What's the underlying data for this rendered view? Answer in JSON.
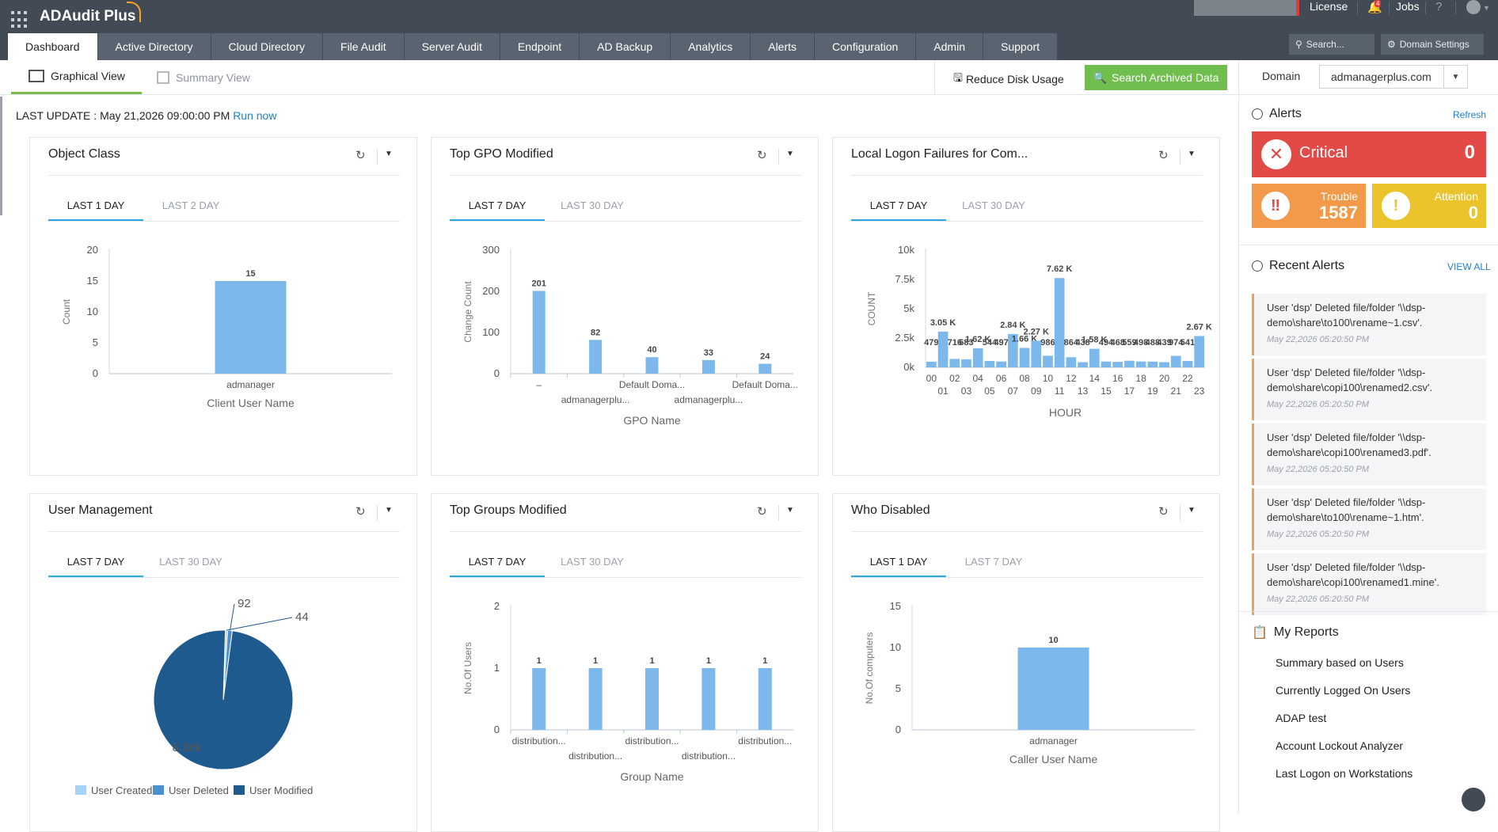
{
  "app": {
    "title": "ADAudit Plus"
  },
  "header": {
    "license_label": "License",
    "notification_count": "4",
    "jobs_label": "Jobs",
    "help_label": "?",
    "search_placeholder": "Search...",
    "domain_settings_label": "Domain Settings"
  },
  "nav": {
    "tabs": [
      "Dashboard",
      "Active Directory",
      "Cloud Directory",
      "File Audit",
      "Server Audit",
      "Endpoint",
      "AD Backup",
      "Analytics",
      "Alerts",
      "Configuration",
      "Admin",
      "Support"
    ],
    "active": "Dashboard"
  },
  "subbar": {
    "graphical_view": "Graphical View",
    "summary_view": "Summary View",
    "reduce_disk": "Reduce Disk Usage",
    "search_archived": "Search Archived Data",
    "domain_label": "Domain",
    "domain_value": "admanagerplus.com"
  },
  "last_update": {
    "label": "LAST UPDATE : May 21,2026 09:00:00 PM",
    "run_now": "Run now"
  },
  "colors": {
    "bar": "#7db8ec",
    "pie_dark": "#1f5a8f",
    "pie_mid": "#4a8fd0",
    "pie_light": "#a6d3f7",
    "accent_tab": "#2aa7e0",
    "green": "#70bf4e",
    "critical": "#e14a46",
    "trouble": "#f29a4a",
    "attention": "#eac42a"
  },
  "widgets": {
    "object_class": {
      "title": "Object Class",
      "tab_active": "LAST 1 DAY",
      "tab_inactive": "LAST 2 DAY",
      "chart_data": {
        "type": "bar",
        "categories": [
          "admanager"
        ],
        "values": [
          15
        ],
        "labels": [
          "15"
        ],
        "xlabel": "Client User Name",
        "ylabel": "Count",
        "ylim": [
          0,
          20
        ],
        "yticks": [
          "0",
          "5",
          "10",
          "15",
          "20"
        ]
      }
    },
    "top_gpo": {
      "title": "Top GPO Modified",
      "tab_active": "LAST 7 DAY",
      "tab_inactive": "LAST 30 DAY",
      "chart_data": {
        "type": "bar",
        "categories": [
          "–",
          "admanagerplu...",
          "Default Doma...",
          "admanagerplu...",
          "Default Doma..."
        ],
        "values": [
          201,
          82,
          40,
          33,
          24
        ],
        "labels": [
          "201",
          "82",
          "40",
          "33",
          "24"
        ],
        "xlabel": "GPO Name",
        "ylabel": "Change Count",
        "ylim": [
          0,
          300
        ],
        "yticks": [
          "0",
          "100",
          "200",
          "300"
        ]
      }
    },
    "local_logon": {
      "title": "Local Logon Failures for Com...",
      "tab_active": "LAST 7 DAY",
      "tab_inactive": "LAST 30 DAY",
      "chart_data": {
        "type": "bar",
        "categories": [
          "00",
          "01",
          "02",
          "03",
          "04",
          "05",
          "06",
          "07",
          "08",
          "09",
          "10",
          "11",
          "12",
          "13",
          "14",
          "15",
          "16",
          "17",
          "18",
          "19",
          "20",
          "21",
          "22",
          "23"
        ],
        "values": [
          479,
          3050,
          716,
          683,
          1620,
          544,
          497,
          2840,
          1660,
          2270,
          986,
          7620,
          864,
          438,
          1580,
          494,
          468,
          559,
          498,
          488,
          439,
          974,
          541,
          2670
        ],
        "labels": [
          "479",
          "3.05 K",
          "716",
          "683",
          "1.62 K",
          "544",
          "497",
          "2.84 K",
          "1.66 K",
          "2.27 K",
          "986",
          "7.62 K",
          "864",
          "438",
          "1.58 K",
          "494",
          "468",
          "559",
          "498",
          "488",
          "439",
          "974",
          "541",
          "2.67 K"
        ],
        "xlabel": "HOUR",
        "ylabel": "COUNT",
        "ylim": [
          0,
          10000
        ],
        "yticks": [
          "0k",
          "2.5k",
          "5k",
          "7.5k",
          "10k"
        ]
      }
    },
    "user_mgmt": {
      "title": "User Management",
      "tab_active": "LAST 7 DAY",
      "tab_inactive": "LAST 30 DAY",
      "chart_data": {
        "type": "pie",
        "slices": [
          {
            "name": "User Created",
            "value": 44,
            "label": "44"
          },
          {
            "name": "User Deleted",
            "value": 92,
            "label": "92"
          },
          {
            "name": "User Modified",
            "value": 8360,
            "label": "8.36k"
          }
        ]
      }
    },
    "top_groups": {
      "title": "Top Groups Modified",
      "tab_active": "LAST 7 DAY",
      "tab_inactive": "LAST 30 DAY",
      "chart_data": {
        "type": "bar",
        "categories": [
          "distribution...",
          "distribution...",
          "distribution...",
          "distribution...",
          "distribution..."
        ],
        "values": [
          1,
          1,
          1,
          1,
          1
        ],
        "labels": [
          "1",
          "1",
          "1",
          "1",
          "1"
        ],
        "xlabel": "Group Name",
        "ylabel": "No.Of Users",
        "ylim": [
          0,
          2
        ],
        "yticks": [
          "0",
          "1",
          "2"
        ]
      }
    },
    "who_disabled": {
      "title": "Who Disabled",
      "tab_active": "LAST 1 DAY",
      "tab_inactive": "LAST 7 DAY",
      "chart_data": {
        "type": "bar",
        "categories": [
          "admanager"
        ],
        "values": [
          10
        ],
        "labels": [
          "10"
        ],
        "xlabel": "Caller User Name",
        "ylabel": "No.Of computers",
        "ylim": [
          0,
          15
        ],
        "yticks": [
          "0",
          "5",
          "10",
          "15"
        ]
      }
    }
  },
  "right_panel": {
    "alerts_title": "Alerts",
    "refresh": "Refresh",
    "critical": {
      "label": "Critical",
      "value": "0"
    },
    "trouble": {
      "label": "Trouble",
      "value": "1587"
    },
    "attention": {
      "label": "Attention",
      "value": "0"
    },
    "recent_title": "Recent Alerts",
    "view_all": "VIEW ALL",
    "recent": [
      {
        "msg": "User 'dsp' Deleted file/folder '\\\\dsp-demo\\share\\to100\\rename~1.csv'.",
        "time": "May 22,2026 05:20:50 PM"
      },
      {
        "msg": "User 'dsp' Deleted file/folder '\\\\dsp-demo\\share\\copi100\\renamed2.csv'.",
        "time": "May 22,2026 05:20:50 PM"
      },
      {
        "msg": "User 'dsp' Deleted file/folder '\\\\dsp-demo\\share\\copi100\\renamed3.pdf'.",
        "time": "May 22,2026 05:20:50 PM"
      },
      {
        "msg": "User 'dsp' Deleted file/folder '\\\\dsp-demo\\share\\to100\\rename~1.htm'.",
        "time": "May 22,2026 05:20:50 PM"
      },
      {
        "msg": "User 'dsp' Deleted file/folder '\\\\dsp-demo\\share\\copi100\\renamed1.mine'.",
        "time": "May 22,2026 05:20:50 PM"
      }
    ],
    "reports_title": "My Reports",
    "reports": [
      "Summary based on Users",
      "Currently Logged On Users",
      "ADAP test",
      "Account Lockout Analyzer",
      "Last Logon on Workstations"
    ]
  }
}
